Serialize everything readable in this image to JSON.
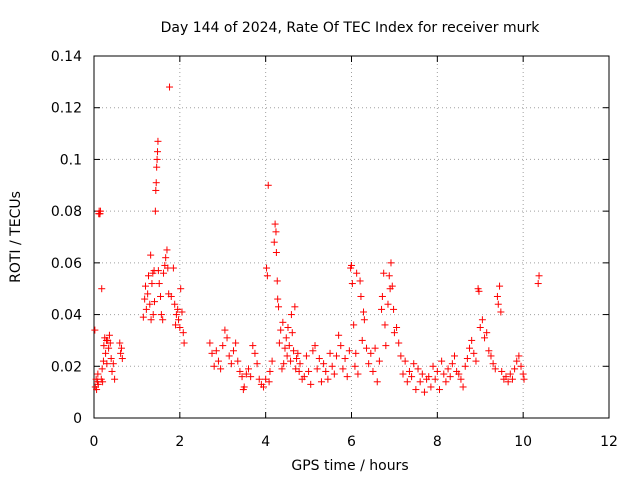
{
  "chart_data": {
    "type": "scatter",
    "title": "Day 144 of 2024, Rate Of TEC Index for receiver murk",
    "xlabel": "GPS time / hours",
    "ylabel": "ROTI / TECUs",
    "xlim": [
      0,
      12
    ],
    "ylim": [
      0,
      0.14
    ],
    "xticks": [
      0,
      2,
      4,
      6,
      8,
      10,
      12
    ],
    "xtick_labels": [
      "0",
      "2",
      "4",
      "6",
      "8",
      "10",
      "12"
    ],
    "yticks": [
      0,
      0.02,
      0.04,
      0.06,
      0.08,
      0.1,
      0.12,
      0.14
    ],
    "ytick_labels": [
      "0",
      "0.02",
      "0.04",
      "0.06",
      "0.08",
      "0.1",
      "0.12",
      "0.14"
    ],
    "grid": true,
    "marker": "+",
    "marker_color": "#ff0000",
    "series": [
      {
        "name": "ROTI",
        "points": [
          [
            0.02,
            0.034
          ],
          [
            0.03,
            0.012
          ],
          [
            0.05,
            0.015
          ],
          [
            0.06,
            0.011
          ],
          [
            0.08,
            0.014
          ],
          [
            0.09,
            0.017
          ],
          [
            0.1,
            0.013
          ],
          [
            0.11,
            0.079
          ],
          [
            0.12,
            0.08
          ],
          [
            0.13,
            0.079
          ],
          [
            0.14,
            0.079
          ],
          [
            0.15,
            0.08
          ],
          [
            0.17,
            0.015
          ],
          [
            0.18,
            0.05
          ],
          [
            0.19,
            0.019
          ],
          [
            0.2,
            0.014
          ],
          [
            0.22,
            0.022
          ],
          [
            0.23,
            0.028
          ],
          [
            0.25,
            0.031
          ],
          [
            0.27,
            0.025
          ],
          [
            0.29,
            0.03
          ],
          [
            0.3,
            0.021
          ],
          [
            0.32,
            0.03
          ],
          [
            0.34,
            0.027
          ],
          [
            0.36,
            0.032
          ],
          [
            0.38,
            0.029
          ],
          [
            0.4,
            0.023
          ],
          [
            0.42,
            0.018
          ],
          [
            0.45,
            0.021
          ],
          [
            0.48,
            0.015
          ],
          [
            0.6,
            0.029
          ],
          [
            0.62,
            0.025
          ],
          [
            0.64,
            0.027
          ],
          [
            0.66,
            0.023
          ],
          [
            1.15,
            0.039
          ],
          [
            1.18,
            0.046
          ],
          [
            1.2,
            0.051
          ],
          [
            1.22,
            0.042
          ],
          [
            1.25,
            0.048
          ],
          [
            1.27,
            0.055
          ],
          [
            1.3,
            0.044
          ],
          [
            1.32,
            0.063
          ],
          [
            1.33,
            0.038
          ],
          [
            1.35,
            0.052
          ],
          [
            1.37,
            0.056
          ],
          [
            1.38,
            0.04
          ],
          [
            1.4,
            0.057
          ],
          [
            1.41,
            0.045
          ],
          [
            1.43,
            0.08
          ],
          [
            1.44,
            0.088
          ],
          [
            1.45,
            0.091
          ],
          [
            1.46,
            0.097
          ],
          [
            1.47,
            0.1
          ],
          [
            1.48,
            0.103
          ],
          [
            1.49,
            0.107
          ],
          [
            1.5,
            0.057
          ],
          [
            1.52,
            0.052
          ],
          [
            1.55,
            0.047
          ],
          [
            1.57,
            0.04
          ],
          [
            1.6,
            0.038
          ],
          [
            1.62,
            0.056
          ],
          [
            1.65,
            0.059
          ],
          [
            1.67,
            0.062
          ],
          [
            1.7,
            0.065
          ],
          [
            1.72,
            0.058
          ],
          [
            1.74,
            0.048
          ],
          [
            1.76,
            0.128
          ],
          [
            1.8,
            0.047
          ],
          [
            1.85,
            0.058
          ],
          [
            1.88,
            0.044
          ],
          [
            1.9,
            0.036
          ],
          [
            1.92,
            0.04
          ],
          [
            1.95,
            0.042
          ],
          [
            1.97,
            0.038
          ],
          [
            2.0,
            0.035
          ],
          [
            2.02,
            0.05
          ],
          [
            2.05,
            0.041
          ],
          [
            2.08,
            0.033
          ],
          [
            2.1,
            0.029
          ],
          [
            2.7,
            0.029
          ],
          [
            2.75,
            0.025
          ],
          [
            2.8,
            0.02
          ],
          [
            2.85,
            0.026
          ],
          [
            2.9,
            0.022
          ],
          [
            2.95,
            0.019
          ],
          [
            3.0,
            0.028
          ],
          [
            3.05,
            0.034
          ],
          [
            3.1,
            0.031
          ],
          [
            3.15,
            0.024
          ],
          [
            3.2,
            0.021
          ],
          [
            3.25,
            0.026
          ],
          [
            3.3,
            0.029
          ],
          [
            3.35,
            0.022
          ],
          [
            3.4,
            0.018
          ],
          [
            3.45,
            0.016
          ],
          [
            3.48,
            0.011
          ],
          [
            3.5,
            0.012
          ],
          [
            3.55,
            0.017
          ],
          [
            3.6,
            0.019
          ],
          [
            3.65,
            0.016
          ],
          [
            3.7,
            0.028
          ],
          [
            3.75,
            0.025
          ],
          [
            3.8,
            0.021
          ],
          [
            3.85,
            0.015
          ],
          [
            3.9,
            0.013
          ],
          [
            3.95,
            0.012
          ],
          [
            4.0,
            0.015
          ],
          [
            4.02,
            0.058
          ],
          [
            4.04,
            0.055
          ],
          [
            4.06,
            0.09
          ],
          [
            4.08,
            0.014
          ],
          [
            4.1,
            0.018
          ],
          [
            4.15,
            0.022
          ],
          [
            4.2,
            0.068
          ],
          [
            4.22,
            0.075
          ],
          [
            4.24,
            0.072
          ],
          [
            4.25,
            0.064
          ],
          [
            4.27,
            0.053
          ],
          [
            4.28,
            0.046
          ],
          [
            4.3,
            0.043
          ],
          [
            4.32,
            0.029
          ],
          [
            4.35,
            0.034
          ],
          [
            4.38,
            0.019
          ],
          [
            4.4,
            0.037
          ],
          [
            4.42,
            0.021
          ],
          [
            4.45,
            0.027
          ],
          [
            4.48,
            0.031
          ],
          [
            4.5,
            0.024
          ],
          [
            4.52,
            0.035
          ],
          [
            4.55,
            0.028
          ],
          [
            4.58,
            0.022
          ],
          [
            4.6,
            0.04
          ],
          [
            4.62,
            0.033
          ],
          [
            4.65,
            0.026
          ],
          [
            4.68,
            0.043
          ],
          [
            4.7,
            0.019
          ],
          [
            4.72,
            0.023
          ],
          [
            4.75,
            0.025
          ],
          [
            4.78,
            0.018
          ],
          [
            4.8,
            0.021
          ],
          [
            4.85,
            0.015
          ],
          [
            4.9,
            0.016
          ],
          [
            4.95,
            0.024
          ],
          [
            5.0,
            0.018
          ],
          [
            5.05,
            0.013
          ],
          [
            5.1,
            0.026
          ],
          [
            5.15,
            0.028
          ],
          [
            5.2,
            0.019
          ],
          [
            5.25,
            0.023
          ],
          [
            5.3,
            0.014
          ],
          [
            5.35,
            0.021
          ],
          [
            5.4,
            0.018
          ],
          [
            5.45,
            0.015
          ],
          [
            5.5,
            0.025
          ],
          [
            5.55,
            0.02
          ],
          [
            5.6,
            0.017
          ],
          [
            5.65,
            0.024
          ],
          [
            5.7,
            0.032
          ],
          [
            5.75,
            0.028
          ],
          [
            5.8,
            0.019
          ],
          [
            5.85,
            0.023
          ],
          [
            5.9,
            0.016
          ],
          [
            5.95,
            0.026
          ],
          [
            5.98,
            0.058
          ],
          [
            6.0,
            0.059
          ],
          [
            6.02,
            0.052
          ],
          [
            6.05,
            0.036
          ],
          [
            6.08,
            0.02
          ],
          [
            6.1,
            0.025
          ],
          [
            6.12,
            0.056
          ],
          [
            6.15,
            0.017
          ],
          [
            6.2,
            0.053
          ],
          [
            6.22,
            0.047
          ],
          [
            6.25,
            0.03
          ],
          [
            6.28,
            0.041
          ],
          [
            6.3,
            0.038
          ],
          [
            6.35,
            0.027
          ],
          [
            6.4,
            0.021
          ],
          [
            6.45,
            0.025
          ],
          [
            6.5,
            0.018
          ],
          [
            6.55,
            0.027
          ],
          [
            6.6,
            0.014
          ],
          [
            6.65,
            0.022
          ],
          [
            6.7,
            0.042
          ],
          [
            6.72,
            0.047
          ],
          [
            6.75,
            0.056
          ],
          [
            6.78,
            0.036
          ],
          [
            6.8,
            0.028
          ],
          [
            6.85,
            0.044
          ],
          [
            6.88,
            0.055
          ],
          [
            6.9,
            0.05
          ],
          [
            6.92,
            0.06
          ],
          [
            6.95,
            0.051
          ],
          [
            6.98,
            0.042
          ],
          [
            7.0,
            0.033
          ],
          [
            7.05,
            0.035
          ],
          [
            7.1,
            0.029
          ],
          [
            7.15,
            0.024
          ],
          [
            7.2,
            0.017
          ],
          [
            7.25,
            0.022
          ],
          [
            7.3,
            0.014
          ],
          [
            7.35,
            0.018
          ],
          [
            7.4,
            0.016
          ],
          [
            7.45,
            0.021
          ],
          [
            7.5,
            0.011
          ],
          [
            7.55,
            0.019
          ],
          [
            7.6,
            0.014
          ],
          [
            7.65,
            0.017
          ],
          [
            7.7,
            0.01
          ],
          [
            7.75,
            0.015
          ],
          [
            7.8,
            0.016
          ],
          [
            7.85,
            0.012
          ],
          [
            7.9,
            0.02
          ],
          [
            7.95,
            0.015
          ],
          [
            8.0,
            0.018
          ],
          [
            8.05,
            0.011
          ],
          [
            8.1,
            0.022
          ],
          [
            8.15,
            0.017
          ],
          [
            8.2,
            0.014
          ],
          [
            8.25,
            0.019
          ],
          [
            8.3,
            0.016
          ],
          [
            8.35,
            0.021
          ],
          [
            8.4,
            0.024
          ],
          [
            8.45,
            0.018
          ],
          [
            8.5,
            0.017
          ],
          [
            8.55,
            0.015
          ],
          [
            8.6,
            0.012
          ],
          [
            8.65,
            0.02
          ],
          [
            8.7,
            0.023
          ],
          [
            8.75,
            0.027
          ],
          [
            8.8,
            0.03
          ],
          [
            8.85,
            0.025
          ],
          [
            8.9,
            0.022
          ],
          [
            8.95,
            0.05
          ],
          [
            8.97,
            0.049
          ],
          [
            9.0,
            0.035
          ],
          [
            9.05,
            0.038
          ],
          [
            9.1,
            0.031
          ],
          [
            9.15,
            0.033
          ],
          [
            9.2,
            0.026
          ],
          [
            9.25,
            0.024
          ],
          [
            9.3,
            0.021
          ],
          [
            9.35,
            0.019
          ],
          [
            9.4,
            0.047
          ],
          [
            9.42,
            0.044
          ],
          [
            9.45,
            0.051
          ],
          [
            9.48,
            0.041
          ],
          [
            9.5,
            0.018
          ],
          [
            9.55,
            0.015
          ],
          [
            9.6,
            0.016
          ],
          [
            9.65,
            0.014
          ],
          [
            9.7,
            0.017
          ],
          [
            9.75,
            0.015
          ],
          [
            9.8,
            0.019
          ],
          [
            9.85,
            0.022
          ],
          [
            9.9,
            0.024
          ],
          [
            9.95,
            0.02
          ],
          [
            10.0,
            0.017
          ],
          [
            10.02,
            0.015
          ],
          [
            10.35,
            0.052
          ],
          [
            10.37,
            0.055
          ]
        ]
      }
    ]
  }
}
